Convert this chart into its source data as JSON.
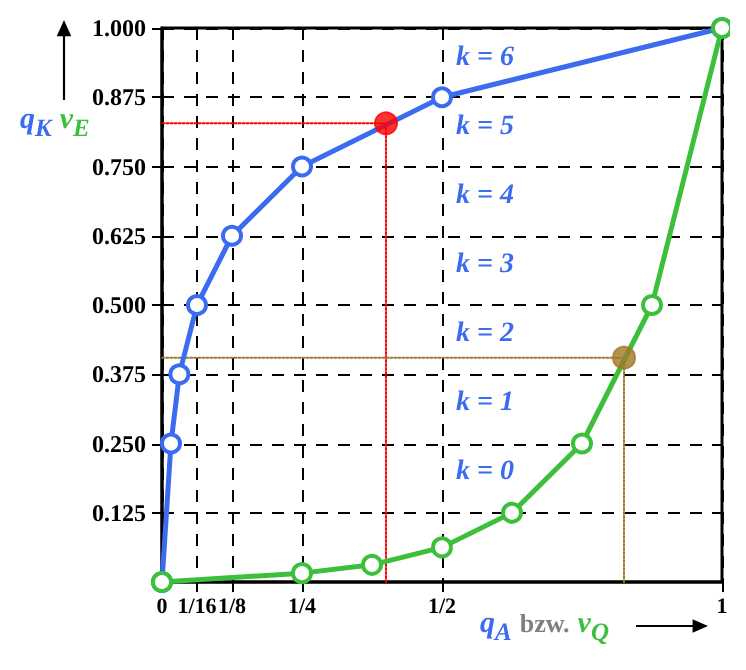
{
  "chart_data": {
    "type": "line",
    "xlabel": "q$_{A}$ bzw. v$_{Q}$",
    "ylabel": "q$_{K}$ v$_{E}$",
    "series": [
      {
        "color": "#3b6cf0",
        "marker": "circle",
        "x": [
          0,
          0.016,
          0.031,
          0.0625,
          0.125,
          0.25,
          0.5,
          1
        ],
        "values": [
          0,
          0.25,
          0.375,
          0.5,
          0.625,
          0.75,
          0.875,
          1
        ]
      },
      {
        "color": "#3cc03c",
        "marker": "circle",
        "x": [
          0,
          0.25,
          0.375,
          0.5,
          0.625,
          0.75,
          0.875,
          1
        ],
        "values": [
          0,
          0.016,
          0.031,
          0.0625,
          0.125,
          0.25,
          0.5,
          1
        ]
      },
      {
        "color": "#ff0000",
        "marker": "none",
        "line_style": "dotted",
        "x": [
          0.4,
          0.4,
          0
        ],
        "values": [
          0,
          0.828,
          0.828
        ]
      },
      {
        "color": "#a07828",
        "marker": "none",
        "line_style": "dotted",
        "x": [
          0.825,
          0.825,
          0
        ],
        "values": [
          0,
          0.405,
          0.405
        ]
      },
      {
        "type": "scatter",
        "color": "#ff0000",
        "marker": "circle",
        "x": [
          0.4
        ],
        "values": [
          0.828
        ]
      },
      {
        "type": "scatter",
        "color": "#a07828",
        "marker": "circle",
        "x": [
          0.825
        ],
        "values": [
          0.405
        ]
      }
    ],
    "annotations": [
      "k = 6",
      "k = 5",
      "k = 4",
      "k = 3",
      "k = 2",
      "k = 1",
      "k = 0"
    ],
    "xlim": [
      0,
      1
    ],
    "xticks": [
      0,
      {
        "value": 0.0625,
        "label": "1/16"
      },
      {
        "value": 0.125,
        "label": "1/8"
      },
      {
        "value": 0.25,
        "label": "1/4"
      },
      {
        "value": 0.5,
        "label": "1/2"
      },
      1
    ],
    "ylim": [
      0,
      1
    ],
    "yticks": [
      {
        "value": 0.125,
        "label": "0.125"
      },
      {
        "value": 0.25,
        "label": "0.250"
      },
      {
        "value": 0.375,
        "label": "0.375"
      },
      {
        "value": 0.5,
        "label": "0.500"
      },
      {
        "value": 0.625,
        "label": "0.625"
      },
      {
        "value": 0.75,
        "label": "0.750"
      },
      {
        "value": 0.875,
        "label": "0.875"
      },
      {
        "value": 1,
        "label": "1.000"
      }
    ],
    "grid": true
  }
}
